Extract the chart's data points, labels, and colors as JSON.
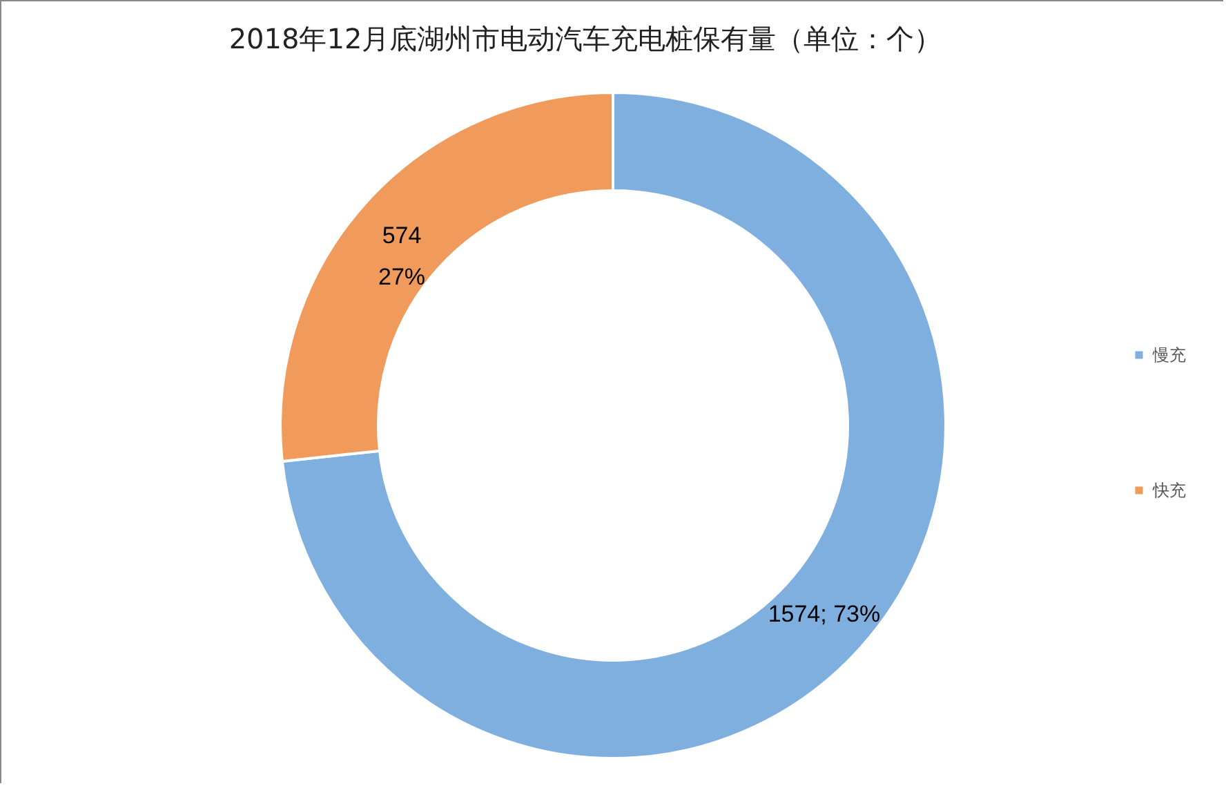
{
  "chart_data": {
    "type": "donut",
    "title": "2018年12月底湖州市电动汽车充电桩保有量（单位：个）",
    "categories": [
      "慢充",
      "快充"
    ],
    "values": [
      1574,
      574
    ],
    "colors": [
      "#7fafdf",
      "#f09a5c"
    ],
    "value_labels": [
      "1574; 73%",
      "574\n27%"
    ],
    "legend": "right"
  }
}
